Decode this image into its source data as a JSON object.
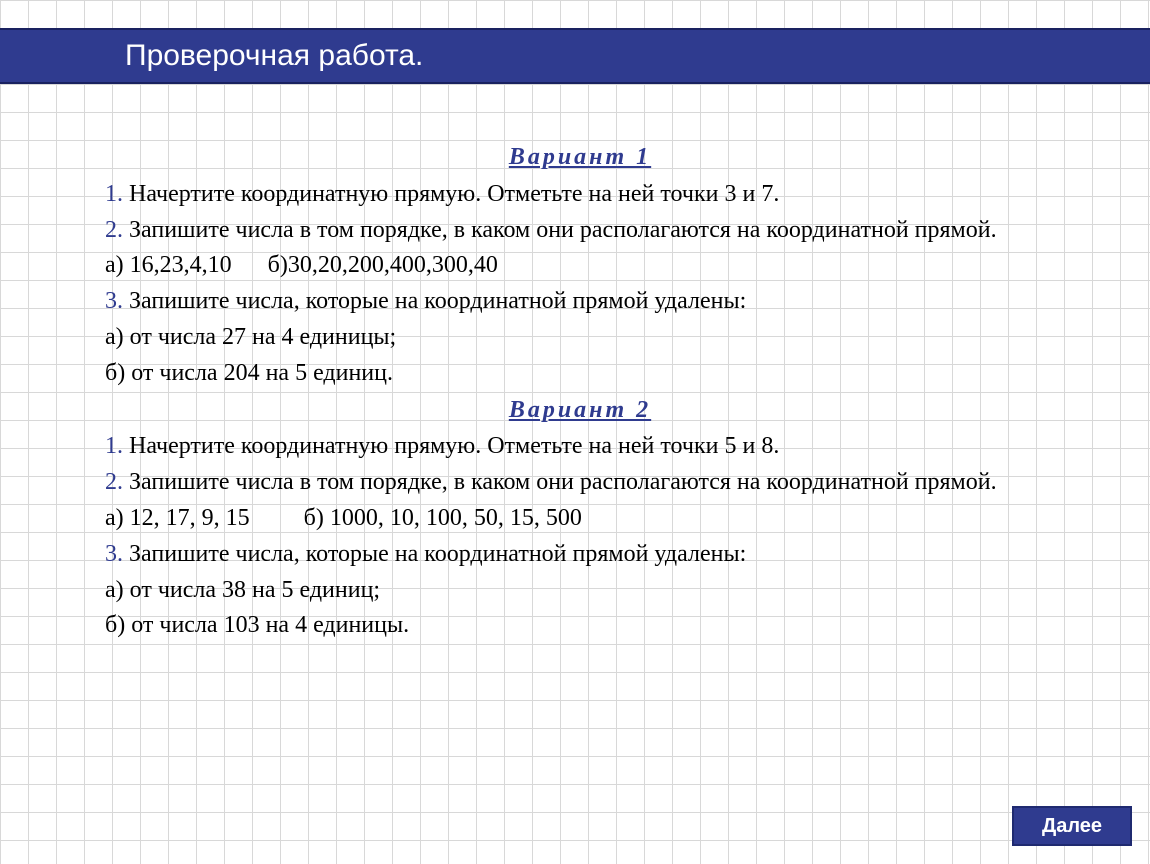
{
  "header": {
    "title": "Проверочная работа."
  },
  "variant1": {
    "title": "Вариант 1",
    "q1": {
      "num": "1.",
      "text": " Начертите координатную прямую. Отметьте на ней точки 3 и 7."
    },
    "q2": {
      "num": "2.",
      "text": " Запишите числа в том порядке, в каком они располагаются на координатной прямой.",
      "a": "а) 16,23,4,10      б)30,20,200,400,300,40"
    },
    "q3": {
      "num": "3.",
      "text": " Запишите числа, которые на координатной прямой удалены:",
      "a": "а) от числа 27 на 4 единицы;",
      "b": "б) от числа 204 на 5 единиц."
    }
  },
  "variant2": {
    "title": "Вариант 2",
    "q1": {
      "num": "1.",
      "text": " Начертите координатную прямую. Отметьте на ней точки 5 и 8."
    },
    "q2": {
      "num": "2.",
      "text": " Запишите числа в том порядке, в каком они располагаются на координатной прямой.",
      "a": "а) 12, 17, 9, 15         б) 1000, 10, 100, 50, 15, 500"
    },
    "q3": {
      "num": "3.",
      "text": " Запишите числа, которые на координатной прямой удалены:",
      "a": "а) от числа 38 на 5 единиц;",
      "b": "б) от числа 103 на 4 единицы."
    }
  },
  "nextButton": {
    "label": "Далее"
  },
  "colors": {
    "accent": "#2f3b8f",
    "grid": "#d8d8d8",
    "text": "#000000",
    "white": "#ffffff"
  }
}
